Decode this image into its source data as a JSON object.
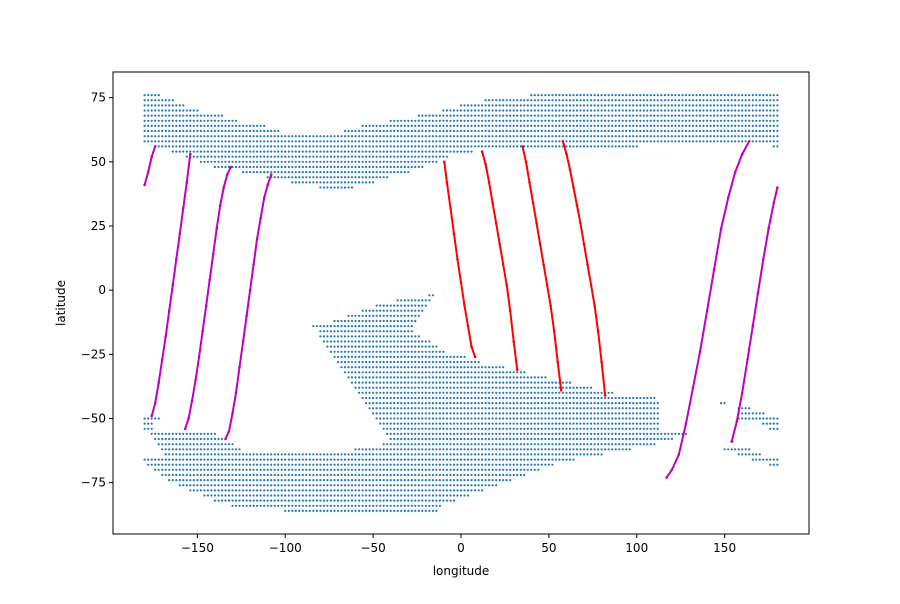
{
  "chart_data": {
    "type": "scatter",
    "title": "",
    "xlabel": "longitude",
    "ylabel": "latitude",
    "xlim": [
      -198,
      198
    ],
    "ylim": [
      -95,
      85
    ],
    "xticks": [
      -150,
      -100,
      -50,
      0,
      50,
      100,
      150
    ],
    "yticks": [
      -75,
      -50,
      -25,
      0,
      25,
      50,
      75
    ],
    "grid": false,
    "legend": "none",
    "colors": {
      "grid_points": "#1f77b4",
      "track_red": "#ff0000",
      "track_magenta": "#bf00bf"
    },
    "grid_regions": [
      {
        "name": "northern band",
        "lon_step": 2,
        "lat_step": 2,
        "rows": [
          {
            "lat": 76,
            "spans": [
              [
                -180,
                -172
              ],
              [
                40,
                180
              ]
            ]
          },
          {
            "lat": 74,
            "spans": [
              [
                -180,
                -164
              ],
              [
                14,
                180
              ]
            ]
          },
          {
            "lat": 72,
            "spans": [
              [
                -180,
                -158
              ],
              [
                0,
                180
              ]
            ]
          },
          {
            "lat": 70,
            "spans": [
              [
                -180,
                -150
              ],
              [
                -10,
                180
              ]
            ]
          },
          {
            "lat": 68,
            "spans": [
              [
                -180,
                -136
              ],
              [
                -24,
                180
              ]
            ]
          },
          {
            "lat": 66,
            "spans": [
              [
                -180,
                -128
              ],
              [
                -40,
                180
              ]
            ]
          },
          {
            "lat": 64,
            "spans": [
              [
                -180,
                -112
              ],
              [
                -56,
                180
              ]
            ]
          },
          {
            "lat": 62,
            "spans": [
              [
                -180,
                -104
              ],
              [
                -66,
                180
              ]
            ]
          },
          {
            "lat": 60,
            "spans": [
              [
                -180,
                180
              ]
            ]
          },
          {
            "lat": 58,
            "spans": [
              [
                -180,
                180
              ]
            ]
          },
          {
            "lat": 56,
            "spans": [
              [
                -172,
                100
              ],
              [
                178,
                180
              ]
            ]
          },
          {
            "lat": 54,
            "spans": [
              [
                -164,
                6
              ]
            ]
          },
          {
            "lat": 52,
            "spans": [
              [
                -156,
                -8
              ]
            ]
          },
          {
            "lat": 50,
            "spans": [
              [
                -148,
                -14
              ]
            ]
          },
          {
            "lat": 48,
            "spans": [
              [
                -140,
                -22
              ]
            ]
          },
          {
            "lat": 46,
            "spans": [
              [
                -124,
                -30
              ]
            ]
          },
          {
            "lat": 44,
            "spans": [
              [
                -110,
                -42
              ]
            ]
          },
          {
            "lat": 42,
            "spans": [
              [
                -96,
                -50
              ]
            ]
          },
          {
            "lat": 40,
            "spans": [
              [
                -80,
                -62
              ]
            ]
          }
        ]
      },
      {
        "name": "southern band",
        "lon_step": 2,
        "lat_step": 2,
        "rows": [
          {
            "lat": -2,
            "spans": [
              [
                -18,
                -16
              ]
            ]
          },
          {
            "lat": -4,
            "spans": [
              [
                -36,
                -18
              ]
            ]
          },
          {
            "lat": -6,
            "spans": [
              [
                -48,
                -20
              ]
            ]
          },
          {
            "lat": -8,
            "spans": [
              [
                -56,
                -22
              ]
            ]
          },
          {
            "lat": -10,
            "spans": [
              [
                -64,
                -24
              ]
            ]
          },
          {
            "lat": -12,
            "spans": [
              [
                -72,
                -26
              ]
            ]
          },
          {
            "lat": -14,
            "spans": [
              [
                -84,
                -28
              ]
            ]
          },
          {
            "lat": -16,
            "spans": [
              [
                -80,
                -28
              ]
            ]
          },
          {
            "lat": -18,
            "spans": [
              [
                -80,
                -24
              ]
            ]
          },
          {
            "lat": -20,
            "spans": [
              [
                -78,
                -18
              ]
            ]
          },
          {
            "lat": -22,
            "spans": [
              [
                -76,
                -14
              ]
            ]
          },
          {
            "lat": -24,
            "spans": [
              [
                -74,
                -10
              ]
            ]
          },
          {
            "lat": -26,
            "spans": [
              [
                -72,
                2
              ]
            ]
          },
          {
            "lat": -28,
            "spans": [
              [
                -70,
                10
              ]
            ]
          },
          {
            "lat": -30,
            "spans": [
              [
                -68,
                24
              ]
            ]
          },
          {
            "lat": -32,
            "spans": [
              [
                -66,
                36
              ]
            ]
          },
          {
            "lat": -34,
            "spans": [
              [
                -64,
                48
              ]
            ]
          },
          {
            "lat": -36,
            "spans": [
              [
                -62,
                62
              ]
            ]
          },
          {
            "lat": -38,
            "spans": [
              [
                -60,
                74
              ]
            ]
          },
          {
            "lat": -40,
            "spans": [
              [
                -58,
                86
              ]
            ]
          },
          {
            "lat": -42,
            "spans": [
              [
                -56,
                110
              ]
            ]
          },
          {
            "lat": -44,
            "spans": [
              [
                -54,
                112
              ],
              [
                148,
                150
              ]
            ]
          },
          {
            "lat": -46,
            "spans": [
              [
                -52,
                112
              ],
              [
                158,
                164
              ]
            ]
          },
          {
            "lat": -48,
            "spans": [
              [
                -50,
                112
              ],
              [
                158,
                172
              ]
            ]
          },
          {
            "lat": -50,
            "spans": [
              [
                -180,
                -172
              ],
              [
                -48,
                112
              ],
              [
                158,
                180
              ]
            ]
          },
          {
            "lat": -52,
            "spans": [
              [
                -180,
                -176
              ],
              [
                -46,
                112
              ],
              [
                172,
                180
              ]
            ]
          },
          {
            "lat": -54,
            "spans": [
              [
                -180,
                -176
              ],
              [
                -44,
                112
              ],
              [
                176,
                180
              ]
            ]
          },
          {
            "lat": -56,
            "spans": [
              [
                -176,
                -140
              ],
              [
                -42,
                128
              ]
            ]
          },
          {
            "lat": -58,
            "spans": [
              [
                -174,
                -134
              ],
              [
                -40,
                120
              ]
            ]
          },
          {
            "lat": -60,
            "spans": [
              [
                -172,
                -130
              ],
              [
                -44,
                110
              ]
            ]
          },
          {
            "lat": -62,
            "spans": [
              [
                -170,
                -126
              ],
              [
                -60,
                96
              ],
              [
                150,
                164
              ]
            ]
          },
          {
            "lat": -64,
            "spans": [
              [
                -168,
                80
              ],
              [
                158,
                170
              ]
            ]
          },
          {
            "lat": -66,
            "spans": [
              [
                -180,
                64
              ],
              [
                166,
                180
              ]
            ]
          },
          {
            "lat": -68,
            "spans": [
              [
                -178,
                52
              ],
              [
                176,
                180
              ]
            ]
          },
          {
            "lat": -70,
            "spans": [
              [
                -174,
                44
              ]
            ]
          },
          {
            "lat": -72,
            "spans": [
              [
                -170,
                36
              ]
            ]
          },
          {
            "lat": -74,
            "spans": [
              [
                -166,
                28
              ]
            ]
          },
          {
            "lat": -76,
            "spans": [
              [
                -160,
                20
              ]
            ]
          },
          {
            "lat": -78,
            "spans": [
              [
                -154,
                12
              ]
            ]
          },
          {
            "lat": -80,
            "spans": [
              [
                -146,
                4
              ]
            ]
          },
          {
            "lat": -82,
            "spans": [
              [
                -140,
                -4
              ]
            ]
          },
          {
            "lat": -84,
            "spans": [
              [
                -130,
                -12
              ]
            ]
          },
          {
            "lat": -86,
            "spans": [
              [
                -100,
                -14
              ]
            ]
          }
        ]
      }
    ],
    "series": [
      {
        "color": "red",
        "x": [
          -9.5,
          -8,
          -6,
          -4,
          -2,
          0,
          2,
          4,
          6,
          8
        ],
        "y": [
          50,
          42,
          32,
          22,
          12,
          3,
          -6,
          -14,
          -22,
          -26
        ]
      },
      {
        "color": "red",
        "x": [
          12,
          14,
          16,
          18,
          20,
          22,
          24,
          26,
          28,
          30,
          32
        ],
        "y": [
          54,
          49,
          42,
          34,
          26,
          18,
          10,
          2,
          -8,
          -20,
          -31
        ]
      },
      {
        "color": "red",
        "x": [
          35,
          37,
          39,
          41,
          43,
          45,
          47,
          49,
          51,
          53,
          55,
          57
        ],
        "y": [
          56,
          50,
          42,
          34,
          26,
          18,
          10,
          2,
          -6,
          -16,
          -28,
          -39
        ]
      },
      {
        "color": "red",
        "x": [
          58,
          60,
          62,
          64,
          66,
          68,
          70,
          72,
          74,
          76,
          78,
          80,
          82
        ],
        "y": [
          58,
          53,
          47,
          40,
          33,
          26,
          18,
          10,
          2,
          -6,
          -16,
          -28,
          -41
        ]
      },
      {
        "color": "magenta",
        "x": [
          -180,
          -178,
          -176,
          -174
        ],
        "y": [
          41,
          46,
          52,
          56
        ]
      },
      {
        "color": "magenta",
        "x": [
          -176,
          -174,
          -172,
          -170,
          -168,
          -166,
          -164,
          -162,
          -160,
          -158,
          -156,
          -154
        ],
        "y": [
          -49,
          -44,
          -36,
          -27,
          -18,
          -8,
          2,
          12,
          22,
          32,
          42,
          53
        ]
      },
      {
        "color": "magenta",
        "x": [
          -157,
          -155,
          -153,
          -151,
          -149,
          -147,
          -145,
          -143,
          -141,
          -139,
          -137,
          -135,
          -133,
          -131
        ],
        "y": [
          -54,
          -50,
          -43,
          -35,
          -26,
          -16,
          -6,
          4,
          14,
          24,
          33,
          40,
          45,
          48
        ]
      },
      {
        "color": "magenta",
        "x": [
          -134,
          -132,
          -130,
          -128,
          -126,
          -124,
          -122,
          -120,
          -118,
          -116,
          -114,
          -112,
          -110,
          -108
        ],
        "y": [
          -58,
          -55,
          -48,
          -40,
          -30,
          -20,
          -10,
          0,
          10,
          20,
          28,
          36,
          41,
          45
        ]
      },
      {
        "color": "magenta",
        "x": [
          117,
          120,
          124,
          128,
          132,
          136,
          140,
          144,
          148,
          152,
          156,
          160,
          164
        ],
        "y": [
          -73,
          -70,
          -64,
          -52,
          -38,
          -24,
          -8,
          8,
          24,
          36,
          46,
          53,
          58
        ]
      },
      {
        "color": "magenta",
        "x": [
          154,
          157,
          160,
          163,
          166,
          169,
          172,
          175,
          178,
          180
        ],
        "y": [
          -59,
          -51,
          -40,
          -27,
          -14,
          -1,
          12,
          24,
          34,
          40
        ]
      }
    ]
  }
}
